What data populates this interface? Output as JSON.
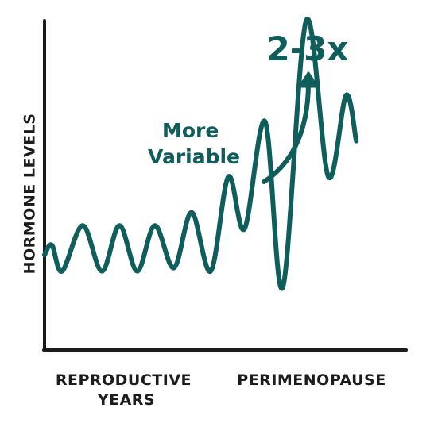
{
  "chart_data": {
    "type": "line",
    "title": "",
    "ylabel": "HORMONE LEVELS",
    "x_categories": [
      "REPRODUCTIVE\nYEARS",
      "PERIMENOPAUSE"
    ],
    "annotations": {
      "variability_label": [
        "More",
        "Variable"
      ],
      "magnitude_label": "2-3x"
    },
    "grid": false,
    "legend": "none",
    "x_domain": [
      0,
      24
    ],
    "y_domain": [
      0,
      10
    ],
    "series": [
      {
        "name": "",
        "color": "#0f5e5c",
        "points": [
          {
            "x": 0.0,
            "y": 2.9
          },
          {
            "x": 0.5,
            "y": 3.2
          },
          {
            "x": 1.2,
            "y": 2.4
          },
          {
            "x": 2.6,
            "y": 3.8
          },
          {
            "x": 3.9,
            "y": 2.4
          },
          {
            "x": 5.1,
            "y": 3.8
          },
          {
            "x": 6.3,
            "y": 2.4
          },
          {
            "x": 7.5,
            "y": 3.8
          },
          {
            "x": 8.8,
            "y": 2.5
          },
          {
            "x": 10.0,
            "y": 4.2
          },
          {
            "x": 11.3,
            "y": 2.4
          },
          {
            "x": 12.5,
            "y": 5.3
          },
          {
            "x": 13.6,
            "y": 3.7
          },
          {
            "x": 15.0,
            "y": 7.0
          },
          {
            "x": 16.2,
            "y": 1.9
          },
          {
            "x": 17.8,
            "y": 10.1
          },
          {
            "x": 19.3,
            "y": 5.3
          },
          {
            "x": 20.5,
            "y": 7.8
          },
          {
            "x": 21.2,
            "y": 6.4
          }
        ]
      }
    ]
  }
}
